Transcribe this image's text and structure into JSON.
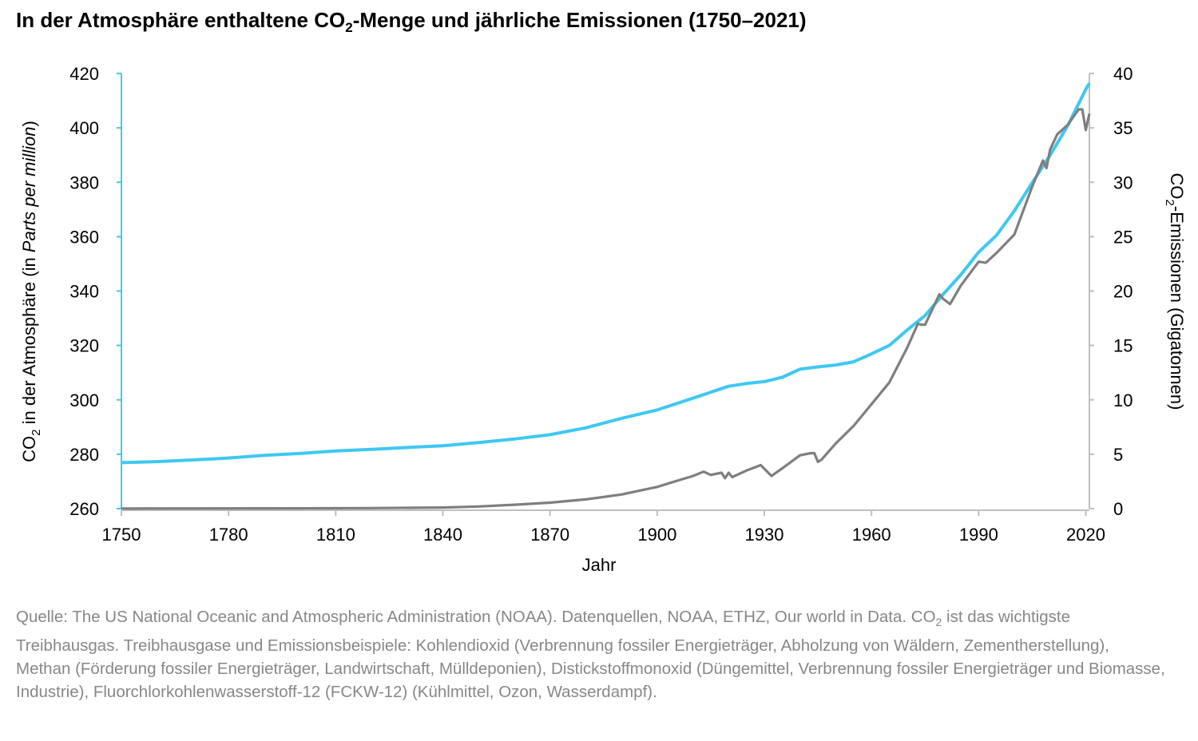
{
  "title": {
    "part1": "In der Atmosphäre enthaltene CO",
    "sub": "2",
    "part2": "-Menge und jährliche Emissionen (1750–2021)"
  },
  "source": {
    "part1": "Quelle: The US National Oceanic and Atmospheric Administration (NOAA). Datenquellen, NOAA, ETHZ, Our world in Data. CO",
    "sub": "2",
    "part2": " ist das wichtigste Treibhausgas. Treibhausgase und Emissionsbeispiele: Kohlendioxid (Verbrennung fossiler Energieträger, Abholzung von Wäldern, Zementherstellung), Methan (Förderung fossiler Energieträger, Landwirtschaft, Mülldeponien), Distickstoffmonoxid (Düngemittel, Verbrennung fossiler Energieträger und Biomasse, Industrie), Fluorchlorkohlenwasserstoff-12 (FCKW-12) (Kühlmittel, Ozon, Wasserdampf)."
  },
  "chart_data": {
    "type": "line",
    "xlabel": "Jahr",
    "ylabel_left": {
      "part1": "CO",
      "sub": "2",
      "part2": " in der Atmosphäre (in ",
      "italic": "Parts per million",
      "part3": ")"
    },
    "ylabel_right": {
      "part1": "CO",
      "sub": "2",
      "part2": "-Emissionen (Gigatonnen)"
    },
    "xlim": [
      1750,
      2021
    ],
    "ylim_left": [
      260,
      420
    ],
    "ylim_right": [
      0,
      40
    ],
    "x_ticks": [
      "1750",
      "1780",
      "1810",
      "1840",
      "1870",
      "1900",
      "1930",
      "1960",
      "1990",
      "2020"
    ],
    "y_ticks_left": [
      "260",
      "280",
      "300",
      "320",
      "340",
      "360",
      "380",
      "400",
      "420"
    ],
    "y_ticks_right": [
      "0",
      "5",
      "10",
      "15",
      "20",
      "25",
      "30",
      "35",
      "40"
    ],
    "grid": false,
    "colors": {
      "atmosphere": "#3ec8f2",
      "emissions": "#7f7f7f",
      "left_axis": "#3ec8f2",
      "right_axis": "#bfbfbf"
    },
    "series": [
      {
        "key": "atmosphere",
        "axis": "left",
        "x": [
          1750,
          1760,
          1770,
          1780,
          1790,
          1800,
          1810,
          1820,
          1830,
          1840,
          1850,
          1860,
          1870,
          1880,
          1890,
          1900,
          1910,
          1920,
          1925,
          1930,
          1935,
          1940,
          1945,
          1950,
          1955,
          1960,
          1965,
          1970,
          1975,
          1980,
          1985,
          1990,
          1995,
          2000,
          2005,
          2010,
          2015,
          2020,
          2021
        ],
        "y": [
          276.9,
          277.3,
          277.9,
          278.6,
          279.6,
          280.3,
          281.2,
          281.8,
          282.5,
          283.1,
          284.3,
          285.6,
          287.2,
          289.7,
          293.2,
          296.3,
          300.6,
          305,
          306,
          306.7,
          308.3,
          311.3,
          312.1,
          312.8,
          314,
          316.9,
          320,
          325.7,
          331,
          338.7,
          346,
          354.3,
          360.5,
          369.5,
          379.8,
          389.9,
          401,
          414.2,
          416.4
        ]
      },
      {
        "key": "emissions",
        "axis": "right",
        "x": [
          1750,
          1800,
          1820,
          1840,
          1850,
          1860,
          1870,
          1880,
          1890,
          1900,
          1905,
          1910,
          1913,
          1915,
          1918,
          1919,
          1920,
          1921,
          1925,
          1929,
          1932,
          1935,
          1940,
          1943,
          1944,
          1945,
          1946,
          1950,
          1955,
          1960,
          1965,
          1970,
          1973,
          1974,
          1975,
          1979,
          1980,
          1982,
          1985,
          1990,
          1992,
          1995,
          2000,
          2005,
          2008,
          2009,
          2010,
          2012,
          2015,
          2018,
          2019,
          2020,
          2021
        ],
        "y": [
          0.01,
          0.03,
          0.05,
          0.1,
          0.2,
          0.36,
          0.55,
          0.85,
          1.3,
          2.0,
          2.5,
          3.0,
          3.4,
          3.1,
          3.3,
          2.8,
          3.3,
          2.9,
          3.5,
          4.0,
          3.0,
          3.7,
          4.9,
          5.1,
          5.1,
          4.3,
          4.5,
          6.0,
          7.6,
          9.6,
          11.6,
          14.8,
          17.0,
          16.9,
          16.9,
          19.7,
          19.3,
          18.8,
          20.5,
          22.7,
          22.6,
          23.5,
          25.2,
          29.6,
          32.0,
          31.3,
          33.0,
          34.4,
          35.3,
          36.7,
          36.7,
          34.8,
          36.3
        ]
      }
    ]
  }
}
